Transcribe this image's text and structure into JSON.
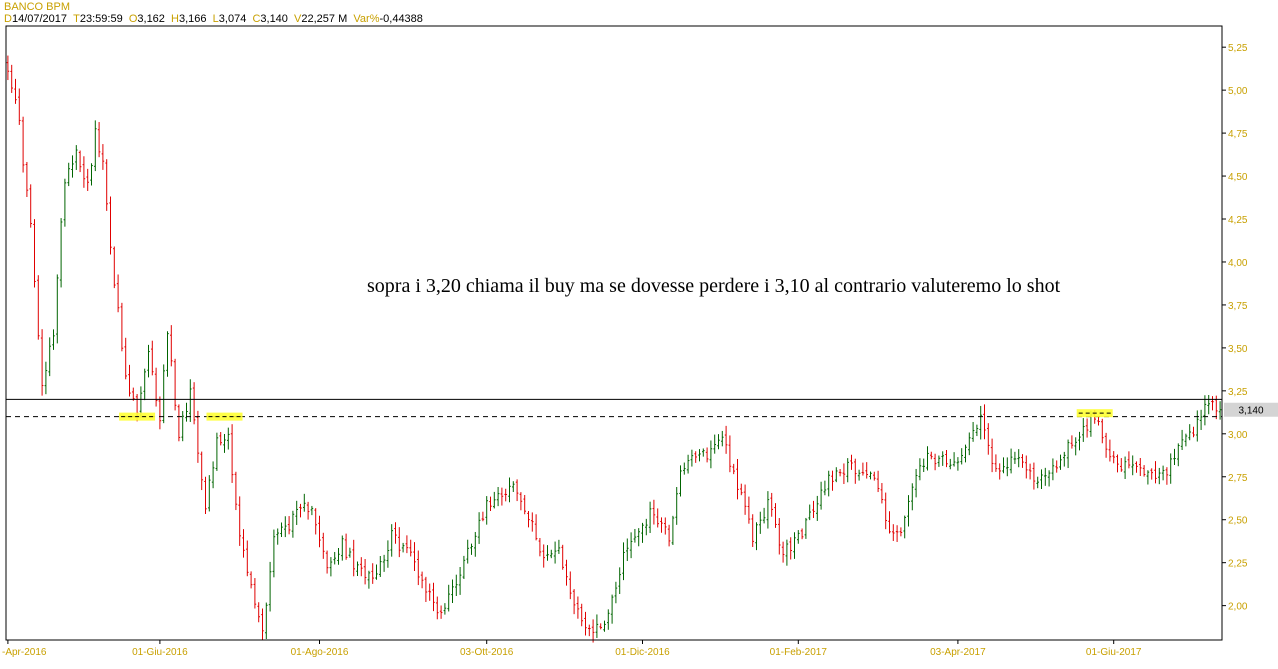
{
  "header": {
    "title": "BANCO BPM",
    "date_key": "D",
    "date": "14/07/2017",
    "time_key": "T",
    "time": "23:59:59",
    "open_key": "O",
    "open": "3,162",
    "high_key": "H",
    "high": "3,166",
    "low_key": "L",
    "low": "3,074",
    "close_key": "C",
    "close": "3,140",
    "vol_key": "V",
    "volume": "22,257 M",
    "var_key": "Var%",
    "var": "-0,44388"
  },
  "annotation": "sopra i 3,20 chiama il buy ma se dovesse perdere i 3,10 al contrario valuteremo lo shot",
  "colors": {
    "up": "#006400",
    "down": "#e00000",
    "axis_text": "#c8a000",
    "highlight": "#ffff33"
  },
  "chart_data": {
    "type": "candlestick",
    "ylim": [
      1.8,
      5.35
    ],
    "y_ticks": [
      "5,25",
      "5,00",
      "4,75",
      "4,50",
      "4,25",
      "4,00",
      "3,75",
      "3,50",
      "3,25",
      "3,00",
      "2,75",
      "2,50",
      "2,25",
      "2,00"
    ],
    "y_tick_values": [
      5.25,
      5.0,
      4.75,
      4.5,
      4.25,
      4.0,
      3.75,
      3.5,
      3.25,
      3.0,
      2.75,
      2.5,
      2.25,
      2.0
    ],
    "x_ticks": [
      "-Apr-2016",
      "01-Giu-2016",
      "01-Ago-2016",
      "03-Ott-2016",
      "01-Dic-2016",
      "01-Feb-2017",
      "03-Apr-2017",
      "01-Giu-2017"
    ],
    "x_tick_index": [
      0,
      40,
      82,
      126,
      167,
      208,
      250,
      291
    ],
    "last_price_label": "3,140",
    "last_price": 3.14,
    "horizontal_lines": [
      {
        "value": 3.2,
        "style": "solid"
      },
      {
        "value": 3.1,
        "style": "dashed"
      }
    ],
    "support_marks": [
      {
        "index": 34,
        "value": 3.1
      },
      {
        "index": 57,
        "value": 3.1
      },
      {
        "index": 286,
        "value": 3.12
      }
    ],
    "anchors": [
      [
        0,
        5.15
      ],
      [
        3,
        4.8
      ],
      [
        6,
        4.2
      ],
      [
        9,
        3.25
      ],
      [
        12,
        3.6
      ],
      [
        15,
        4.5
      ],
      [
        18,
        4.65
      ],
      [
        21,
        4.45
      ],
      [
        23,
        4.75
      ],
      [
        25,
        4.55
      ],
      [
        28,
        3.9
      ],
      [
        31,
        3.3
      ],
      [
        34,
        3.12
      ],
      [
        37,
        3.45
      ],
      [
        40,
        3.1
      ],
      [
        42,
        3.6
      ],
      [
        45,
        3.0
      ],
      [
        48,
        3.25
      ],
      [
        52,
        2.6
      ],
      [
        55,
        2.95
      ],
      [
        58,
        3.0
      ],
      [
        61,
        2.4
      ],
      [
        64,
        2.1
      ],
      [
        67,
        1.85
      ],
      [
        70,
        2.4
      ],
      [
        75,
        2.5
      ],
      [
        80,
        2.6
      ],
      [
        84,
        2.2
      ],
      [
        88,
        2.35
      ],
      [
        92,
        2.2
      ],
      [
        97,
        2.2
      ],
      [
        101,
        2.4
      ],
      [
        106,
        2.3
      ],
      [
        110,
        2.1
      ],
      [
        114,
        1.95
      ],
      [
        119,
        2.2
      ],
      [
        124,
        2.5
      ],
      [
        128,
        2.65
      ],
      [
        133,
        2.7
      ],
      [
        137,
        2.5
      ],
      [
        141,
        2.3
      ],
      [
        145,
        2.3
      ],
      [
        150,
        1.95
      ],
      [
        154,
        1.85
      ],
      [
        158,
        1.95
      ],
      [
        162,
        2.3
      ],
      [
        166,
        2.45
      ],
      [
        170,
        2.55
      ],
      [
        174,
        2.4
      ],
      [
        177,
        2.8
      ],
      [
        181,
        2.85
      ],
      [
        185,
        2.9
      ],
      [
        188,
        3.0
      ],
      [
        192,
        2.7
      ],
      [
        196,
        2.4
      ],
      [
        200,
        2.6
      ],
      [
        204,
        2.3
      ],
      [
        208,
        2.4
      ],
      [
        212,
        2.55
      ],
      [
        216,
        2.75
      ],
      [
        220,
        2.8
      ],
      [
        224,
        2.8
      ],
      [
        228,
        2.75
      ],
      [
        232,
        2.45
      ],
      [
        235,
        2.4
      ],
      [
        238,
        2.7
      ],
      [
        242,
        2.85
      ],
      [
        245,
        2.85
      ],
      [
        248,
        2.8
      ],
      [
        252,
        2.95
      ],
      [
        256,
        3.1
      ],
      [
        259,
        2.85
      ],
      [
        262,
        2.8
      ],
      [
        266,
        2.85
      ],
      [
        270,
        2.75
      ],
      [
        274,
        2.75
      ],
      [
        278,
        2.9
      ],
      [
        282,
        3.0
      ],
      [
        286,
        3.1
      ],
      [
        289,
        2.95
      ],
      [
        292,
        2.8
      ],
      [
        296,
        2.8
      ],
      [
        300,
        2.75
      ],
      [
        304,
        2.75
      ],
      [
        308,
        2.9
      ],
      [
        312,
        3.0
      ],
      [
        316,
        3.18
      ],
      [
        319,
        3.14
      ]
    ]
  }
}
